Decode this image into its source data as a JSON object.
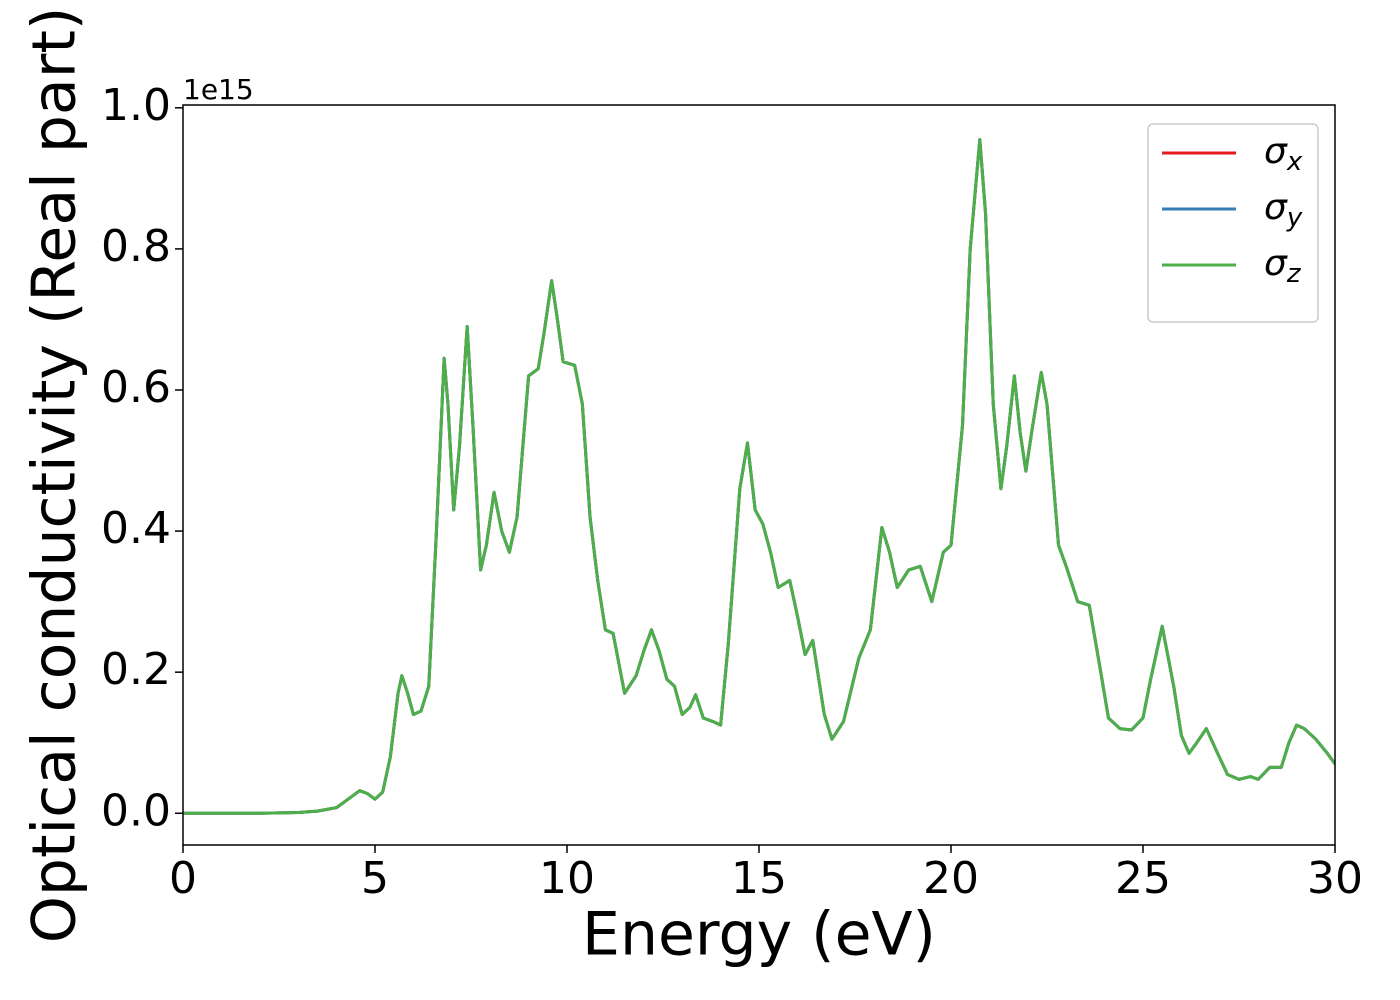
{
  "chart_data": {
    "type": "line",
    "xlabel": "Energy (eV)",
    "ylabel": "Optical conductivity (Real part)",
    "y_offset_text": "1e15",
    "x": [
      0,
      1,
      2,
      3,
      3.5,
      4,
      4.3,
      4.6,
      4.8,
      5.0,
      5.2,
      5.4,
      5.6,
      5.7,
      5.85,
      6.0,
      6.2,
      6.4,
      6.6,
      6.8,
      6.9,
      7.05,
      7.2,
      7.4,
      7.55,
      7.75,
      7.9,
      8.1,
      8.3,
      8.5,
      8.7,
      9.0,
      9.25,
      9.4,
      9.6,
      9.75,
      9.9,
      10.2,
      10.4,
      10.6,
      10.8,
      11.0,
      11.2,
      11.5,
      11.8,
      12.0,
      12.2,
      12.4,
      12.6,
      12.8,
      13.0,
      13.2,
      13.35,
      13.55,
      13.8,
      14.0,
      14.2,
      14.5,
      14.7,
      14.9,
      15.1,
      15.3,
      15.5,
      15.8,
      16.0,
      16.2,
      16.4,
      16.7,
      16.9,
      17.2,
      17.6,
      17.9,
      18.2,
      18.4,
      18.6,
      18.9,
      19.2,
      19.5,
      19.8,
      20.0,
      20.3,
      20.5,
      20.75,
      20.9,
      21.1,
      21.3,
      21.45,
      21.65,
      21.8,
      21.95,
      22.1,
      22.35,
      22.5,
      22.8,
      23.0,
      23.3,
      23.6,
      23.9,
      24.1,
      24.4,
      24.7,
      25.0,
      25.2,
      25.5,
      25.8,
      26.0,
      26.2,
      26.4,
      26.65,
      26.9,
      27.2,
      27.5,
      27.8,
      28.0,
      28.3,
      28.6,
      28.8,
      29.0,
      29.2,
      29.5,
      29.8,
      30
    ],
    "series": [
      {
        "name": "σx",
        "color": "#e41a1c",
        "values": [
          0,
          0,
          0,
          0.001,
          0.003,
          0.008,
          0.02,
          0.032,
          0.028,
          0.02,
          0.03,
          0.08,
          0.17,
          0.195,
          0.17,
          0.14,
          0.145,
          0.18,
          0.4,
          0.645,
          0.58,
          0.43,
          0.52,
          0.69,
          0.55,
          0.345,
          0.38,
          0.455,
          0.4,
          0.37,
          0.42,
          0.62,
          0.63,
          0.68,
          0.755,
          0.7,
          0.64,
          0.635,
          0.58,
          0.42,
          0.33,
          0.26,
          0.255,
          0.17,
          0.195,
          0.23,
          0.26,
          0.23,
          0.19,
          0.18,
          0.14,
          0.15,
          0.168,
          0.135,
          0.13,
          0.125,
          0.24,
          0.46,
          0.525,
          0.43,
          0.41,
          0.37,
          0.32,
          0.33,
          0.28,
          0.225,
          0.245,
          0.14,
          0.105,
          0.13,
          0.22,
          0.26,
          0.405,
          0.37,
          0.32,
          0.345,
          0.35,
          0.3,
          0.37,
          0.38,
          0.55,
          0.8,
          0.955,
          0.85,
          0.58,
          0.46,
          0.52,
          0.62,
          0.54,
          0.485,
          0.54,
          0.625,
          0.58,
          0.38,
          0.35,
          0.3,
          0.295,
          0.2,
          0.135,
          0.12,
          0.118,
          0.135,
          0.19,
          0.265,
          0.18,
          0.11,
          0.085,
          0.1,
          0.12,
          0.09,
          0.055,
          0.048,
          0.052,
          0.048,
          0.065,
          0.065,
          0.1,
          0.125,
          0.12,
          0.105,
          0.085,
          0.07
        ]
      },
      {
        "name": "σy",
        "color": "#377eb8",
        "values": [
          0,
          0,
          0,
          0.001,
          0.003,
          0.008,
          0.02,
          0.032,
          0.028,
          0.02,
          0.03,
          0.08,
          0.17,
          0.195,
          0.17,
          0.14,
          0.145,
          0.18,
          0.4,
          0.645,
          0.58,
          0.43,
          0.52,
          0.69,
          0.55,
          0.345,
          0.38,
          0.455,
          0.4,
          0.37,
          0.42,
          0.62,
          0.63,
          0.68,
          0.755,
          0.7,
          0.64,
          0.635,
          0.58,
          0.42,
          0.33,
          0.26,
          0.255,
          0.17,
          0.195,
          0.23,
          0.26,
          0.23,
          0.19,
          0.18,
          0.14,
          0.15,
          0.168,
          0.135,
          0.13,
          0.125,
          0.24,
          0.46,
          0.525,
          0.43,
          0.41,
          0.37,
          0.32,
          0.33,
          0.28,
          0.225,
          0.245,
          0.14,
          0.105,
          0.13,
          0.22,
          0.26,
          0.405,
          0.37,
          0.32,
          0.345,
          0.35,
          0.3,
          0.37,
          0.38,
          0.55,
          0.8,
          0.955,
          0.85,
          0.58,
          0.46,
          0.52,
          0.62,
          0.54,
          0.485,
          0.54,
          0.625,
          0.58,
          0.38,
          0.35,
          0.3,
          0.295,
          0.2,
          0.135,
          0.12,
          0.118,
          0.135,
          0.19,
          0.265,
          0.18,
          0.11,
          0.085,
          0.1,
          0.12,
          0.09,
          0.055,
          0.048,
          0.052,
          0.048,
          0.065,
          0.065,
          0.1,
          0.125,
          0.12,
          0.105,
          0.085,
          0.07
        ]
      },
      {
        "name": "σz",
        "color": "#4daf4a",
        "values": [
          0,
          0,
          0,
          0.001,
          0.003,
          0.008,
          0.02,
          0.032,
          0.028,
          0.02,
          0.03,
          0.08,
          0.17,
          0.195,
          0.17,
          0.14,
          0.145,
          0.18,
          0.4,
          0.645,
          0.58,
          0.43,
          0.52,
          0.69,
          0.55,
          0.345,
          0.38,
          0.455,
          0.4,
          0.37,
          0.42,
          0.62,
          0.63,
          0.68,
          0.755,
          0.7,
          0.64,
          0.635,
          0.58,
          0.42,
          0.33,
          0.26,
          0.255,
          0.17,
          0.195,
          0.23,
          0.26,
          0.23,
          0.19,
          0.18,
          0.14,
          0.15,
          0.168,
          0.135,
          0.13,
          0.125,
          0.24,
          0.46,
          0.525,
          0.43,
          0.41,
          0.37,
          0.32,
          0.33,
          0.28,
          0.225,
          0.245,
          0.14,
          0.105,
          0.13,
          0.22,
          0.26,
          0.405,
          0.37,
          0.32,
          0.345,
          0.35,
          0.3,
          0.37,
          0.38,
          0.55,
          0.8,
          0.955,
          0.85,
          0.58,
          0.46,
          0.52,
          0.62,
          0.54,
          0.485,
          0.54,
          0.625,
          0.58,
          0.38,
          0.35,
          0.3,
          0.295,
          0.2,
          0.135,
          0.12,
          0.118,
          0.135,
          0.19,
          0.265,
          0.18,
          0.11,
          0.085,
          0.1,
          0.12,
          0.09,
          0.055,
          0.048,
          0.052,
          0.048,
          0.065,
          0.065,
          0.1,
          0.125,
          0.12,
          0.105,
          0.085,
          0.07
        ]
      }
    ],
    "xlim": [
      0,
      30
    ],
    "xticks": [
      0,
      5,
      10,
      15,
      20,
      25,
      30
    ],
    "ylim": [
      -0.045,
      1.004
    ],
    "yticks": [
      {
        "value": 0,
        "label": "0.0"
      },
      0.2,
      0.4,
      0.6,
      0.8,
      {
        "value": 1,
        "label": "1.0"
      }
    ],
    "grid": false,
    "legend": "upper right"
  }
}
